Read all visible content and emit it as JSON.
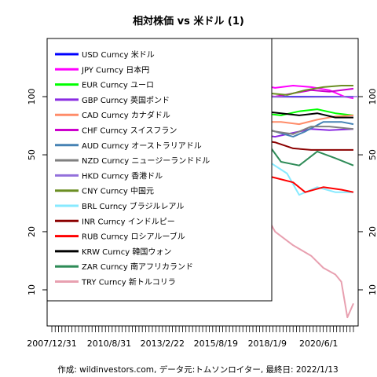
{
  "chart_data": {
    "type": "line",
    "title": "相対株価 vs 米ドル (1)",
    "caption": "作成: wildinvestors.com, データ元:トムソンロイター, 最終日: 2022/1/13",
    "y_scale": "log",
    "ylim": [
      6.5,
      200
    ],
    "y_ticks": [
      10,
      20,
      50,
      100
    ],
    "x_tick_labels": [
      "2007/12/31",
      "2010/8/31",
      "2013/2/22",
      "2015/8/19",
      "2018/1/9",
      "2020/6/1"
    ],
    "x_tick_dates": [
      "2007-12-31",
      "2010-08-31",
      "2013-02-22",
      "2015-08-19",
      "2018-01-09",
      "2020-06-01"
    ],
    "x_range": [
      "2007-12-31",
      "2022-01-13"
    ],
    "reference_line": 100,
    "legend_position": "top-left",
    "series": [
      {
        "name": "USD Curncy 米ドル",
        "color": "#0000ff",
        "values": [
          [
            0,
            100
          ],
          [
            1,
            100
          ]
        ]
      },
      {
        "name": "JPY Curncy 日本円",
        "color": "#ff00ff",
        "values": [
          [
            0,
            100
          ],
          [
            0.06,
            104
          ],
          [
            0.07,
            115
          ],
          [
            0.12,
            122
          ],
          [
            0.18,
            135
          ],
          [
            0.24,
            138
          ],
          [
            0.3,
            145
          ],
          [
            0.36,
            142
          ],
          [
            0.4,
            124
          ],
          [
            0.44,
            116
          ],
          [
            0.5,
            108
          ],
          [
            0.56,
            112
          ],
          [
            0.6,
            110
          ],
          [
            0.68,
            116
          ],
          [
            0.74,
            111
          ],
          [
            0.8,
            114
          ],
          [
            0.86,
            112
          ],
          [
            0.92,
            108
          ],
          [
            0.97,
            100
          ],
          [
            1,
            98
          ]
        ]
      },
      {
        "name": "EUR Curncy ユーロ",
        "color": "#00ff00",
        "values": [
          [
            0,
            100
          ],
          [
            0.06,
            98
          ],
          [
            0.08,
            86
          ],
          [
            0.12,
            92
          ],
          [
            0.18,
            100
          ],
          [
            0.22,
            88
          ],
          [
            0.28,
            94
          ],
          [
            0.34,
            91
          ],
          [
            0.4,
            95
          ],
          [
            0.46,
            78
          ],
          [
            0.52,
            76
          ],
          [
            0.58,
            80
          ],
          [
            0.64,
            87
          ],
          [
            0.7,
            82
          ],
          [
            0.76,
            80
          ],
          [
            0.82,
            84
          ],
          [
            0.88,
            86
          ],
          [
            0.94,
            82
          ],
          [
            1,
            80
          ]
        ]
      },
      {
        "name": "GBP Curncy 英国ポンド",
        "color": "#8a2be2",
        "values": [
          [
            0,
            100
          ],
          [
            0.05,
            96
          ],
          [
            0.08,
            74
          ],
          [
            0.14,
            76
          ],
          [
            0.2,
            78
          ],
          [
            0.26,
            77
          ],
          [
            0.32,
            80
          ],
          [
            0.38,
            84
          ],
          [
            0.44,
            76
          ],
          [
            0.5,
            64
          ],
          [
            0.56,
            66
          ],
          [
            0.62,
            65
          ],
          [
            0.68,
            64
          ],
          [
            0.74,
            62
          ],
          [
            0.8,
            65
          ],
          [
            0.86,
            68
          ],
          [
            0.92,
            67
          ],
          [
            1,
            68
          ]
        ]
      },
      {
        "name": "CAD Curncy カナダドル",
        "color": "#ff8c69",
        "values": [
          [
            0,
            100
          ],
          [
            0.06,
            100
          ],
          [
            0.08,
            80
          ],
          [
            0.14,
            95
          ],
          [
            0.22,
            102
          ],
          [
            0.28,
            100
          ],
          [
            0.34,
            98
          ],
          [
            0.4,
            90
          ],
          [
            0.46,
            72
          ],
          [
            0.52,
            76
          ],
          [
            0.58,
            78
          ],
          [
            0.64,
            77
          ],
          [
            0.7,
            74
          ],
          [
            0.76,
            74
          ],
          [
            0.82,
            72
          ],
          [
            0.88,
            76
          ],
          [
            0.94,
            79
          ],
          [
            1,
            80
          ]
        ]
      },
      {
        "name": "CHF Curncy スイスフラン",
        "color": "#cc00cc",
        "values": [
          [
            0,
            100
          ],
          [
            0.06,
            108
          ],
          [
            0.1,
            100
          ],
          [
            0.16,
            108
          ],
          [
            0.22,
            130
          ],
          [
            0.26,
            112
          ],
          [
            0.32,
            112
          ],
          [
            0.38,
            114
          ],
          [
            0.44,
            110
          ],
          [
            0.5,
            104
          ],
          [
            0.56,
            104
          ],
          [
            0.62,
            100
          ],
          [
            0.68,
            102
          ],
          [
            0.74,
            100
          ],
          [
            0.8,
            104
          ],
          [
            0.86,
            108
          ],
          [
            0.92,
            106
          ],
          [
            1,
            110
          ]
        ]
      },
      {
        "name": "AUD Curncy オーストラリアドル",
        "color": "#4682b4",
        "values": [
          [
            0,
            100
          ],
          [
            0.06,
            95
          ],
          [
            0.08,
            70
          ],
          [
            0.14,
            90
          ],
          [
            0.2,
            100
          ],
          [
            0.26,
            104
          ],
          [
            0.32,
            100
          ],
          [
            0.38,
            86
          ],
          [
            0.44,
            80
          ],
          [
            0.5,
            70
          ],
          [
            0.56,
            72
          ],
          [
            0.62,
            76
          ],
          [
            0.68,
            70
          ],
          [
            0.74,
            66
          ],
          [
            0.8,
            62
          ],
          [
            0.84,
            66
          ],
          [
            0.9,
            74
          ],
          [
            0.96,
            74
          ],
          [
            1,
            72
          ]
        ]
      },
      {
        "name": "NZD Curncy ニュージーランドドル",
        "color": "#808080",
        "values": [
          [
            0,
            100
          ],
          [
            0.06,
            94
          ],
          [
            0.08,
            72
          ],
          [
            0.14,
            86
          ],
          [
            0.2,
            90
          ],
          [
            0.26,
            94
          ],
          [
            0.32,
            96
          ],
          [
            0.38,
            92
          ],
          [
            0.44,
            80
          ],
          [
            0.5,
            70
          ],
          [
            0.56,
            74
          ],
          [
            0.62,
            76
          ],
          [
            0.68,
            70
          ],
          [
            0.74,
            66
          ],
          [
            0.8,
            64
          ],
          [
            0.86,
            70
          ],
          [
            0.92,
            70
          ],
          [
            1,
            68
          ]
        ]
      },
      {
        "name": "HKD Curncy 香港ドル",
        "color": "#9370db",
        "values": [
          [
            0,
            100
          ],
          [
            0.2,
            100
          ],
          [
            0.4,
            100.5
          ],
          [
            0.6,
            100.2
          ],
          [
            0.8,
            99.5
          ],
          [
            1,
            99.8
          ]
        ]
      },
      {
        "name": "CNY Curncy 中国元",
        "color": "#6b8e23",
        "values": [
          [
            0,
            100
          ],
          [
            0.06,
            106
          ],
          [
            0.12,
            107
          ],
          [
            0.18,
            110
          ],
          [
            0.24,
            114
          ],
          [
            0.3,
            118
          ],
          [
            0.36,
            120
          ],
          [
            0.42,
            118
          ],
          [
            0.48,
            112
          ],
          [
            0.54,
            108
          ],
          [
            0.6,
            112
          ],
          [
            0.66,
            106
          ],
          [
            0.72,
            104
          ],
          [
            0.78,
            102
          ],
          [
            0.84,
            108
          ],
          [
            0.9,
            112
          ],
          [
            0.96,
            114
          ],
          [
            1,
            114
          ]
        ]
      },
      {
        "name": "BRL Curncy ブラジルレアル",
        "color": "#87eaff",
        "values": [
          [
            0,
            100
          ],
          [
            0.06,
            104
          ],
          [
            0.08,
            72
          ],
          [
            0.14,
            96
          ],
          [
            0.2,
            98
          ],
          [
            0.26,
            102
          ],
          [
            0.32,
            84
          ],
          [
            0.38,
            78
          ],
          [
            0.44,
            62
          ],
          [
            0.5,
            44
          ],
          [
            0.54,
            48
          ],
          [
            0.6,
            54
          ],
          [
            0.66,
            50
          ],
          [
            0.72,
            46
          ],
          [
            0.78,
            40
          ],
          [
            0.82,
            31
          ],
          [
            0.88,
            34
          ],
          [
            0.94,
            32
          ],
          [
            1,
            32
          ]
        ]
      },
      {
        "name": "INR Curncy インドルピー",
        "color": "#8b0000",
        "values": [
          [
            0,
            100
          ],
          [
            0.06,
            94
          ],
          [
            0.08,
            80
          ],
          [
            0.14,
            86
          ],
          [
            0.2,
            88
          ],
          [
            0.26,
            84
          ],
          [
            0.32,
            74
          ],
          [
            0.38,
            66
          ],
          [
            0.44,
            64
          ],
          [
            0.5,
            62
          ],
          [
            0.56,
            62
          ],
          [
            0.62,
            60
          ],
          [
            0.68,
            60
          ],
          [
            0.74,
            58
          ],
          [
            0.8,
            54
          ],
          [
            0.86,
            53
          ],
          [
            0.92,
            53
          ],
          [
            1,
            53
          ]
        ]
      },
      {
        "name": "RUB Curncy ロシアルーブル",
        "color": "#ff0000",
        "values": [
          [
            0,
            100
          ],
          [
            0.06,
            96
          ],
          [
            0.08,
            72
          ],
          [
            0.14,
            80
          ],
          [
            0.2,
            82
          ],
          [
            0.26,
            80
          ],
          [
            0.32,
            78
          ],
          [
            0.38,
            76
          ],
          [
            0.44,
            58
          ],
          [
            0.48,
            36
          ],
          [
            0.52,
            42
          ],
          [
            0.56,
            38
          ],
          [
            0.62,
            42
          ],
          [
            0.68,
            40
          ],
          [
            0.74,
            38
          ],
          [
            0.8,
            36
          ],
          [
            0.84,
            32
          ],
          [
            0.9,
            34
          ],
          [
            0.96,
            33
          ],
          [
            1,
            32
          ]
        ]
      },
      {
        "name": "KRW Curncy 韓国ウォン",
        "color": "#000000",
        "values": [
          [
            0,
            100
          ],
          [
            0.04,
            96
          ],
          [
            0.06,
            70
          ],
          [
            0.1,
            80
          ],
          [
            0.16,
            84
          ],
          [
            0.22,
            86
          ],
          [
            0.28,
            88
          ],
          [
            0.34,
            92
          ],
          [
            0.4,
            94
          ],
          [
            0.46,
            84
          ],
          [
            0.52,
            82
          ],
          [
            0.58,
            84
          ],
          [
            0.64,
            88
          ],
          [
            0.7,
            84
          ],
          [
            0.76,
            82
          ],
          [
            0.82,
            80
          ],
          [
            0.88,
            82
          ],
          [
            0.94,
            78
          ],
          [
            1,
            78
          ]
        ]
      },
      {
        "name": "ZAR Curncy 南アフリカランド",
        "color": "#2e8b57",
        "values": [
          [
            0,
            100
          ],
          [
            0.06,
            90
          ],
          [
            0.08,
            62
          ],
          [
            0.14,
            86
          ],
          [
            0.2,
            100
          ],
          [
            0.26,
            88
          ],
          [
            0.32,
            80
          ],
          [
            0.38,
            72
          ],
          [
            0.44,
            60
          ],
          [
            0.5,
            50
          ],
          [
            0.54,
            54
          ],
          [
            0.6,
            60
          ],
          [
            0.66,
            54
          ],
          [
            0.72,
            56
          ],
          [
            0.76,
            46
          ],
          [
            0.82,
            44
          ],
          [
            0.88,
            52
          ],
          [
            0.94,
            48
          ],
          [
            1,
            44
          ]
        ]
      },
      {
        "name": "TRY Curncy 新トルコリラ",
        "color": "#e8a0b0",
        "values": [
          [
            0,
            100
          ],
          [
            0.06,
            96
          ],
          [
            0.08,
            72
          ],
          [
            0.14,
            80
          ],
          [
            0.2,
            82
          ],
          [
            0.26,
            76
          ],
          [
            0.32,
            76
          ],
          [
            0.38,
            70
          ],
          [
            0.44,
            56
          ],
          [
            0.5,
            48
          ],
          [
            0.56,
            42
          ],
          [
            0.62,
            38
          ],
          [
            0.66,
            32
          ],
          [
            0.7,
            26
          ],
          [
            0.74,
            20
          ],
          [
            0.8,
            17
          ],
          [
            0.86,
            15
          ],
          [
            0.9,
            13
          ],
          [
            0.94,
            12
          ],
          [
            0.96,
            11
          ],
          [
            0.98,
            7.2
          ],
          [
            1,
            8.5
          ]
        ]
      }
    ]
  }
}
